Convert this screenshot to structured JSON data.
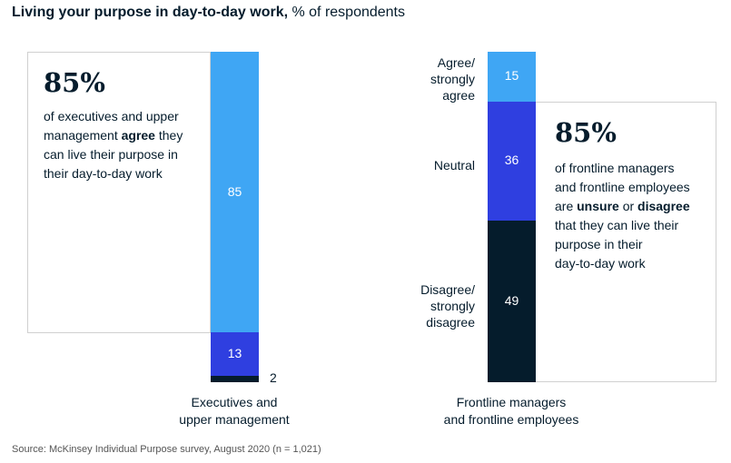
{
  "title": {
    "bold": "Living your purpose in day-to-day work,",
    "rest": " % of respondents"
  },
  "source": "Source: McKinsey Individual Purpose survey, August 2020 (n = 1,021)",
  "colors": {
    "agree": "#3fa6f4",
    "neutral": "#2f3fe0",
    "disagree": "#051c2c",
    "box_border": "#d0d0d0"
  },
  "callouts": [
    {
      "big": "85%",
      "text_html_parts": {
        "line1": "of executives and upper",
        "line2_pre": "management ",
        "line2_bold": "agree",
        "line2_post": " they",
        "line3": "can live their purpose in",
        "line4": "their day-to-day work"
      }
    },
    {
      "big": "85%",
      "text_html_parts": {
        "line1": "of frontline managers",
        "line2": "and frontline employees",
        "line3_pre": "are ",
        "line3_bold1": "unsure",
        "line3_mid": " or ",
        "line3_bold2": "disagree",
        "line4": "that they can live their",
        "line5": "purpose in their",
        "line6": "day-to-day work"
      }
    }
  ],
  "response_labels": {
    "agree": [
      "Agree/",
      "strongly",
      "agree"
    ],
    "neutral": [
      "Neutral"
    ],
    "disagree": [
      "Disagree/",
      "strongly",
      "disagree"
    ]
  },
  "chart_data": {
    "type": "bar",
    "stacked": true,
    "title": "Living your purpose in day-to-day work, % of respondents",
    "categories": [
      "Executives and upper management",
      "Frontline managers and frontline employees"
    ],
    "category_label_lines": [
      [
        "Executives and",
        "upper management"
      ],
      [
        "Frontline managers",
        "and frontline employees"
      ]
    ],
    "series": [
      {
        "name": "Agree/strongly agree",
        "values": [
          85,
          15
        ],
        "color": "#3fa6f4"
      },
      {
        "name": "Neutral",
        "values": [
          13,
          36
        ],
        "color": "#2f3fe0"
      },
      {
        "name": "Disagree/strongly disagree",
        "values": [
          2,
          49
        ],
        "color": "#051c2c"
      }
    ],
    "value_labels": [
      [
        "85",
        "13",
        "2"
      ],
      [
        "15",
        "36",
        "49"
      ]
    ],
    "ylim": [
      0,
      100
    ]
  }
}
